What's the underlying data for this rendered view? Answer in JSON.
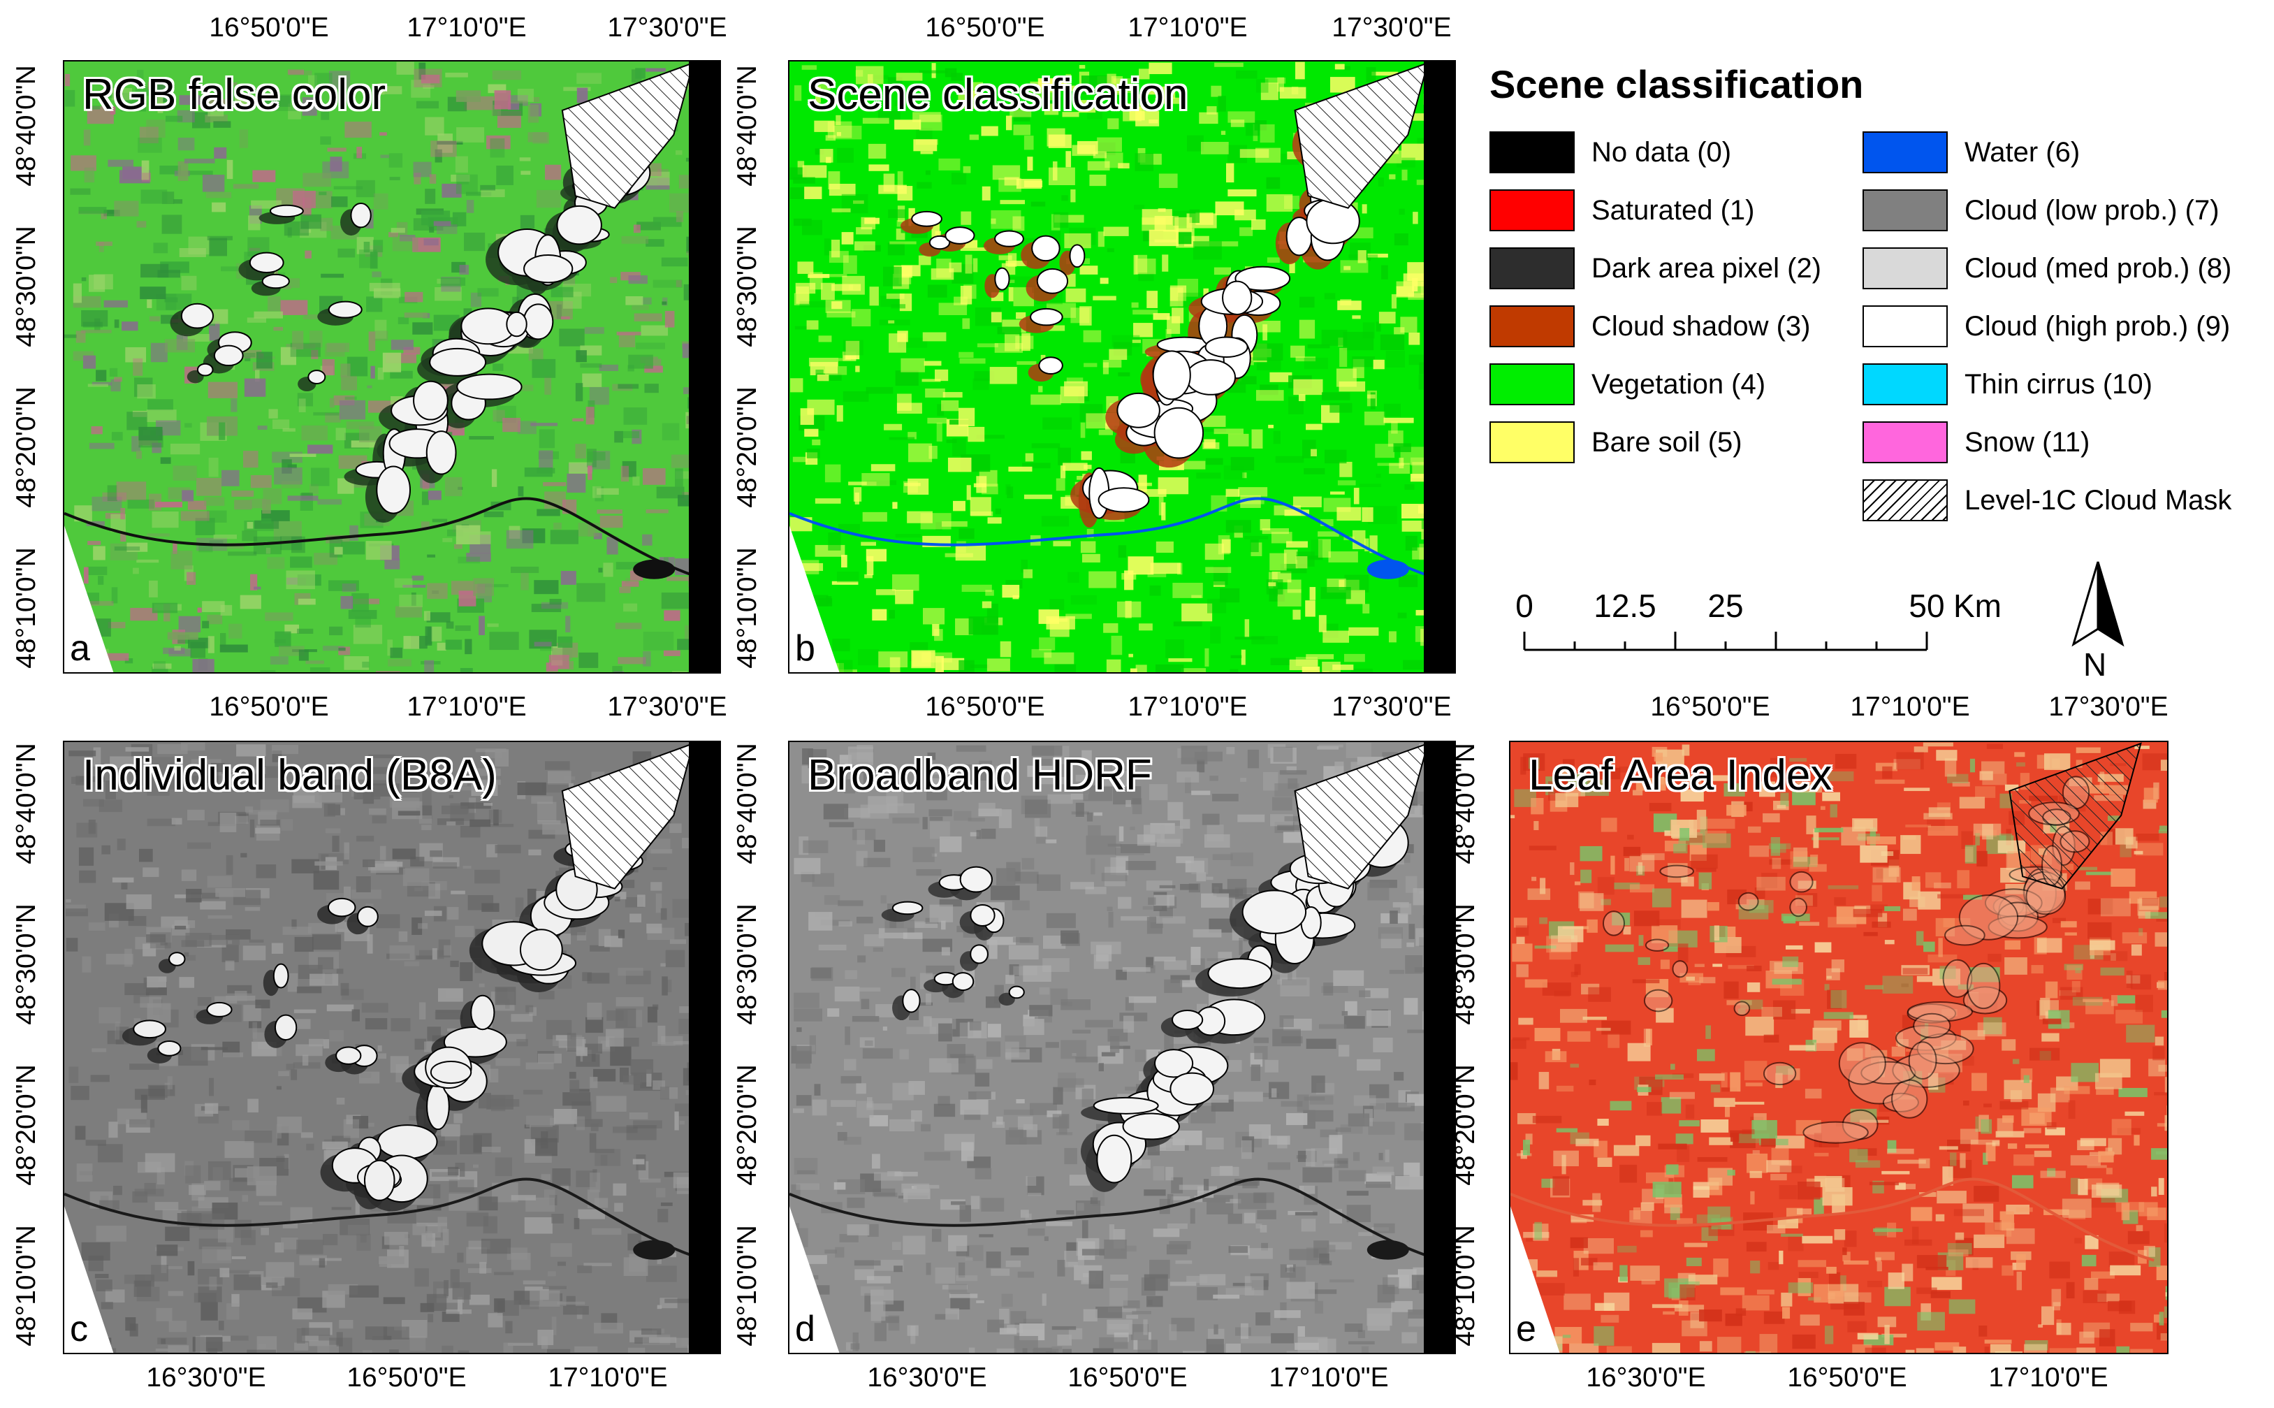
{
  "panels": [
    {
      "id": "a",
      "title": "RGB false color",
      "label": "a",
      "style": "rgb"
    },
    {
      "id": "b",
      "title": "Scene classification",
      "label": "b",
      "style": "scl"
    },
    {
      "id": "c",
      "title": "Individual band (B8A)",
      "label": "c",
      "style": "gray"
    },
    {
      "id": "d",
      "title": "Broadband HDRF",
      "label": "d",
      "style": "gray2"
    },
    {
      "id": "e",
      "title": "Leaf Area Index",
      "label": "e",
      "style": "lai"
    }
  ],
  "axes": {
    "top_lon_labels": [
      "16°50'0\"E",
      "17°10'0\"E",
      "17°30'0\"E"
    ],
    "bottom_lon_labels": [
      "16°30'0\"E",
      "16°50'0\"E",
      "17°10'0\"E"
    ],
    "lat_labels": [
      "48°40'0\"N",
      "48°30'0\"N",
      "48°20'0\"N",
      "48°10'0\"N"
    ]
  },
  "legend": {
    "title": "Scene classification",
    "items": [
      {
        "label": "No data (0)",
        "color": "#000000"
      },
      {
        "label": "Saturated (1)",
        "color": "#ff0000"
      },
      {
        "label": "Dark area pixel (2)",
        "color": "#2d2d2d"
      },
      {
        "label": "Cloud shadow (3)",
        "color": "#c03a00"
      },
      {
        "label": "Vegetation (4)",
        "color": "#00ee00"
      },
      {
        "label": "Bare soil (5)",
        "color": "#ffff66"
      },
      {
        "label": "Water (6)",
        "color": "#0055ee"
      },
      {
        "label": "Cloud (low prob.) (7)",
        "color": "#808080"
      },
      {
        "label": "Cloud (med prob.) (8)",
        "color": "#d9d9d9"
      },
      {
        "label": "Cloud (high prob.) (9)",
        "color": "#ffffff"
      },
      {
        "label": "Thin cirrus (10)",
        "color": "#00d8ff"
      },
      {
        "label": "Snow (11)",
        "color": "#ff66dd"
      },
      {
        "label": "Level-1C Cloud Mask",
        "color": "hatch"
      }
    ]
  },
  "scalebar": {
    "labels": [
      "0",
      "12.5",
      "25",
      "50"
    ],
    "unit": "Km",
    "values": [
      0,
      12.5,
      25,
      50
    ]
  },
  "north_arrow": {
    "label": "N"
  }
}
